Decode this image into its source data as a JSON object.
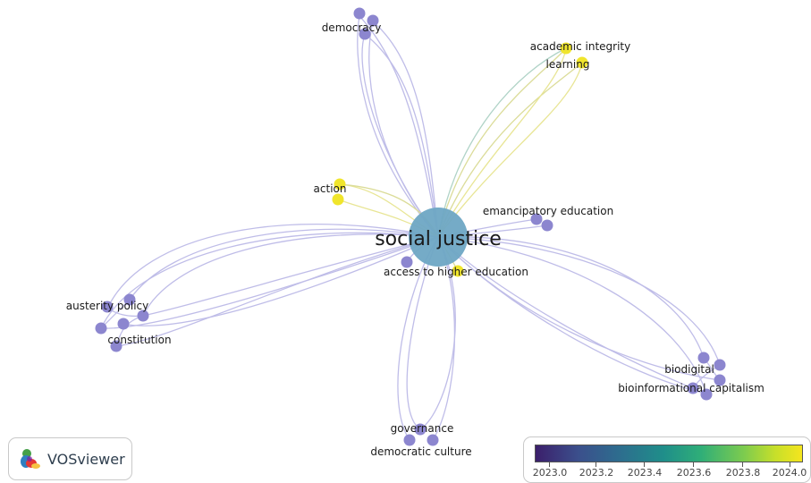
{
  "network": {
    "center_label": "social justice",
    "labels": {
      "democracy": "democracy",
      "academic_integrity": "academic integrity",
      "learning": "learning",
      "action": "action",
      "emancipatory_education": "emancipatory education",
      "access_to_higher_education": "access to higher education",
      "austerity_policy": "austerity policy",
      "constitution": "constitution",
      "biodigital": "biodigital",
      "bioinformational_capitalism": "bioinformational capitalism",
      "governance": "governance",
      "democratic_culture": "democratic culture"
    },
    "colors": {
      "center_node": "#6ea6c4",
      "cluster_purple": "#8c86cf",
      "cluster_yellow": "#f0e52c",
      "edge_purple": "#b9b6e6",
      "edge_yellow": "#e6e38a",
      "edge_teal": "#9fc9c6"
    }
  },
  "logo": {
    "text": "VOSviewer"
  },
  "legend": {
    "ticks": [
      "2023.0",
      "2023.2",
      "2023.4",
      "2023.6",
      "2023.8",
      "2024.0"
    ]
  }
}
